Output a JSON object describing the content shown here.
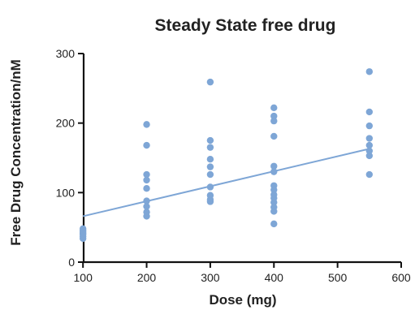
{
  "chart_data": {
    "type": "scatter",
    "title": "Steady State free drug",
    "xlabel": "Dose (mg)",
    "ylabel": "Free Drug Concentration/nM",
    "xlim": [
      100,
      600
    ],
    "ylim": [
      0,
      300
    ],
    "xticks": [
      100,
      200,
      300,
      400,
      500,
      600
    ],
    "yticks": [
      0,
      100,
      200,
      300
    ],
    "grid": false,
    "legend": "none",
    "colors": {
      "points": "#7ea6d6",
      "trendline": "#7ea6d6",
      "axes": "#111111"
    },
    "series": [
      {
        "points": [
          [
            100,
            48
          ],
          [
            100,
            45
          ],
          [
            100,
            42
          ],
          [
            100,
            40
          ],
          [
            100,
            37
          ],
          [
            100,
            34
          ],
          [
            200,
            198
          ],
          [
            200,
            168
          ],
          [
            200,
            126
          ],
          [
            200,
            118
          ],
          [
            200,
            106
          ],
          [
            200,
            88
          ],
          [
            200,
            80
          ],
          [
            200,
            72
          ],
          [
            200,
            66
          ],
          [
            300,
            259
          ],
          [
            300,
            175
          ],
          [
            300,
            165
          ],
          [
            300,
            148
          ],
          [
            300,
            137
          ],
          [
            300,
            126
          ],
          [
            300,
            108
          ],
          [
            300,
            96
          ],
          [
            300,
            90
          ],
          [
            300,
            87
          ],
          [
            400,
            222
          ],
          [
            400,
            210
          ],
          [
            400,
            203
          ],
          [
            400,
            181
          ],
          [
            400,
            138
          ],
          [
            400,
            130
          ],
          [
            400,
            110
          ],
          [
            400,
            104
          ],
          [
            400,
            97
          ],
          [
            400,
            92
          ],
          [
            400,
            86
          ],
          [
            400,
            79
          ],
          [
            400,
            73
          ],
          [
            400,
            55
          ],
          [
            550,
            274
          ],
          [
            550,
            216
          ],
          [
            550,
            196
          ],
          [
            550,
            178
          ],
          [
            550,
            168
          ],
          [
            550,
            160
          ],
          [
            550,
            153
          ],
          [
            550,
            126
          ]
        ]
      }
    ],
    "trendline": {
      "x": [
        100,
        550
      ],
      "y": [
        66,
        163
      ]
    }
  }
}
